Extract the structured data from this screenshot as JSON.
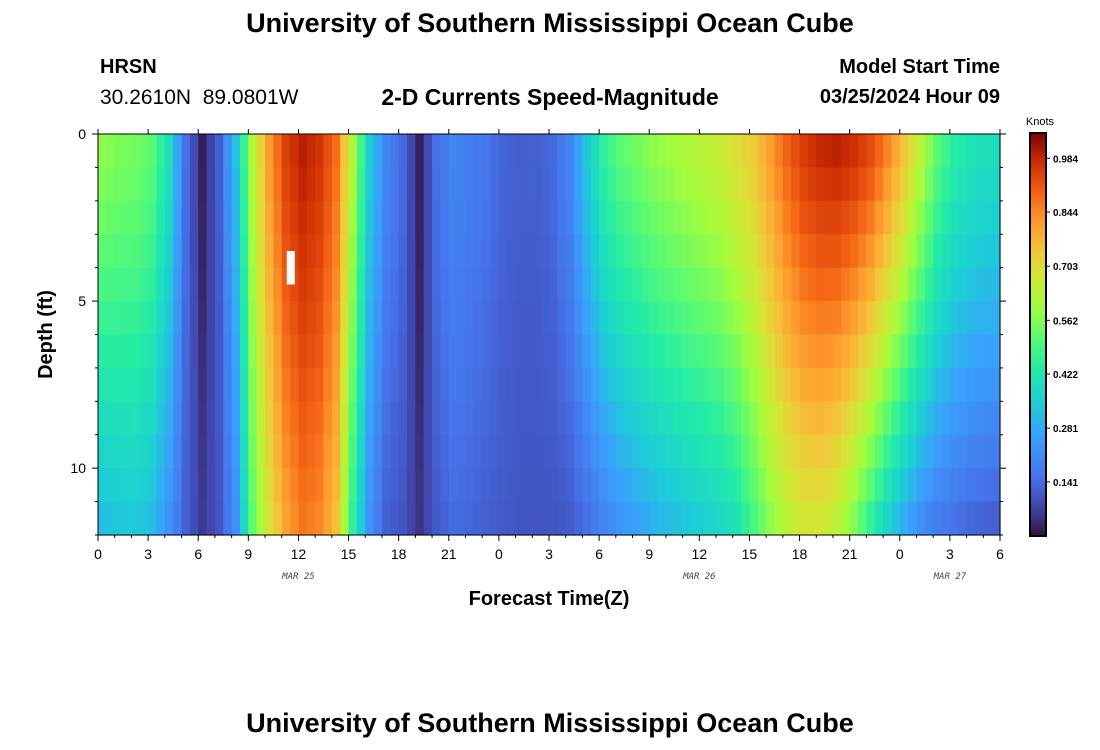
{
  "header": {
    "title": "University of Southern Mississippi Ocean Cube",
    "station_code": "HRSN",
    "station_coords": "30.2610N  89.0801W",
    "chart_title": "2-D Currents Speed-Magnitude",
    "model_start_label": "Model Start Time",
    "model_start_value": "03/25/2024 Hour 09"
  },
  "footer": {
    "title": "University of Southern Mississippi Ocean Cube"
  },
  "chart_data": {
    "type": "heatmap",
    "title": "2-D Currents Speed-Magnitude",
    "xlabel": "Forecast Time(Z)",
    "ylabel": "Depth (ft)",
    "x_tick_labels": [
      "0",
      "3",
      "6",
      "9",
      "12",
      "15",
      "18",
      "21",
      "0",
      "3",
      "6",
      "9",
      "12",
      "15",
      "18",
      "21",
      "0",
      "3",
      "6"
    ],
    "x_range_hours": [
      0,
      54
    ],
    "date_labels": [
      {
        "label": "MAR 25",
        "hour": 12
      },
      {
        "label": "MAR 26",
        "hour": 36
      },
      {
        "label": "MAR 27",
        "hour": 51
      }
    ],
    "y_tick_labels": [
      "0",
      "5",
      "10"
    ],
    "y_range_ft": [
      0,
      12
    ],
    "y_inverted": true,
    "colorbar": {
      "unit": "Knots",
      "ticks": [
        "0.984",
        "0.844",
        "0.703",
        "0.562",
        "0.422",
        "0.281",
        "0.141"
      ],
      "tick_values": [
        0.984,
        0.844,
        0.703,
        0.562,
        0.422,
        0.281,
        0.141
      ],
      "range": [
        0.0,
        1.05
      ],
      "colormap": "turbo"
    },
    "depth_rows_ft": [
      0.5,
      1.5,
      2.5,
      3.5,
      4.5,
      5.5,
      6.5,
      7.5,
      8.5,
      9.5,
      10.5,
      11.5
    ],
    "speed_profile_hours": [
      0,
      1,
      2,
      3,
      4,
      5,
      6,
      7,
      8,
      9,
      10,
      11,
      12,
      13,
      14,
      15,
      16,
      17,
      18,
      19,
      20,
      21,
      22,
      23,
      24,
      25,
      26,
      27,
      28,
      29,
      30,
      31,
      32,
      33,
      34,
      35,
      36,
      37,
      38,
      39,
      40,
      41,
      42,
      43,
      44,
      45,
      46,
      47,
      48,
      49,
      50,
      51,
      52,
      53,
      54
    ],
    "surface_speed_knots": [
      0.58,
      0.56,
      0.55,
      0.52,
      0.4,
      0.15,
      0.02,
      0.12,
      0.32,
      0.62,
      0.82,
      0.95,
      1.0,
      0.97,
      0.88,
      0.62,
      0.35,
      0.2,
      0.14,
      0.02,
      0.15,
      0.2,
      0.18,
      0.16,
      0.13,
      0.12,
      0.12,
      0.14,
      0.2,
      0.34,
      0.46,
      0.52,
      0.55,
      0.58,
      0.6,
      0.62,
      0.64,
      0.66,
      0.7,
      0.74,
      0.82,
      0.9,
      0.96,
      0.99,
      1.0,
      0.98,
      0.94,
      0.86,
      0.76,
      0.64,
      0.52,
      0.45,
      0.42,
      0.4,
      0.4
    ],
    "bottom_speed_knots": [
      0.3,
      0.32,
      0.33,
      0.3,
      0.22,
      0.12,
      0.06,
      0.1,
      0.22,
      0.52,
      0.68,
      0.8,
      0.86,
      0.84,
      0.75,
      0.45,
      0.22,
      0.12,
      0.1,
      0.05,
      0.11,
      0.14,
      0.13,
      0.12,
      0.11,
      0.1,
      0.1,
      0.1,
      0.11,
      0.14,
      0.18,
      0.22,
      0.25,
      0.28,
      0.3,
      0.32,
      0.34,
      0.36,
      0.4,
      0.48,
      0.56,
      0.62,
      0.66,
      0.66,
      0.62,
      0.54,
      0.44,
      0.34,
      0.26,
      0.2,
      0.16,
      0.14,
      0.12,
      0.11,
      0.1
    ]
  }
}
